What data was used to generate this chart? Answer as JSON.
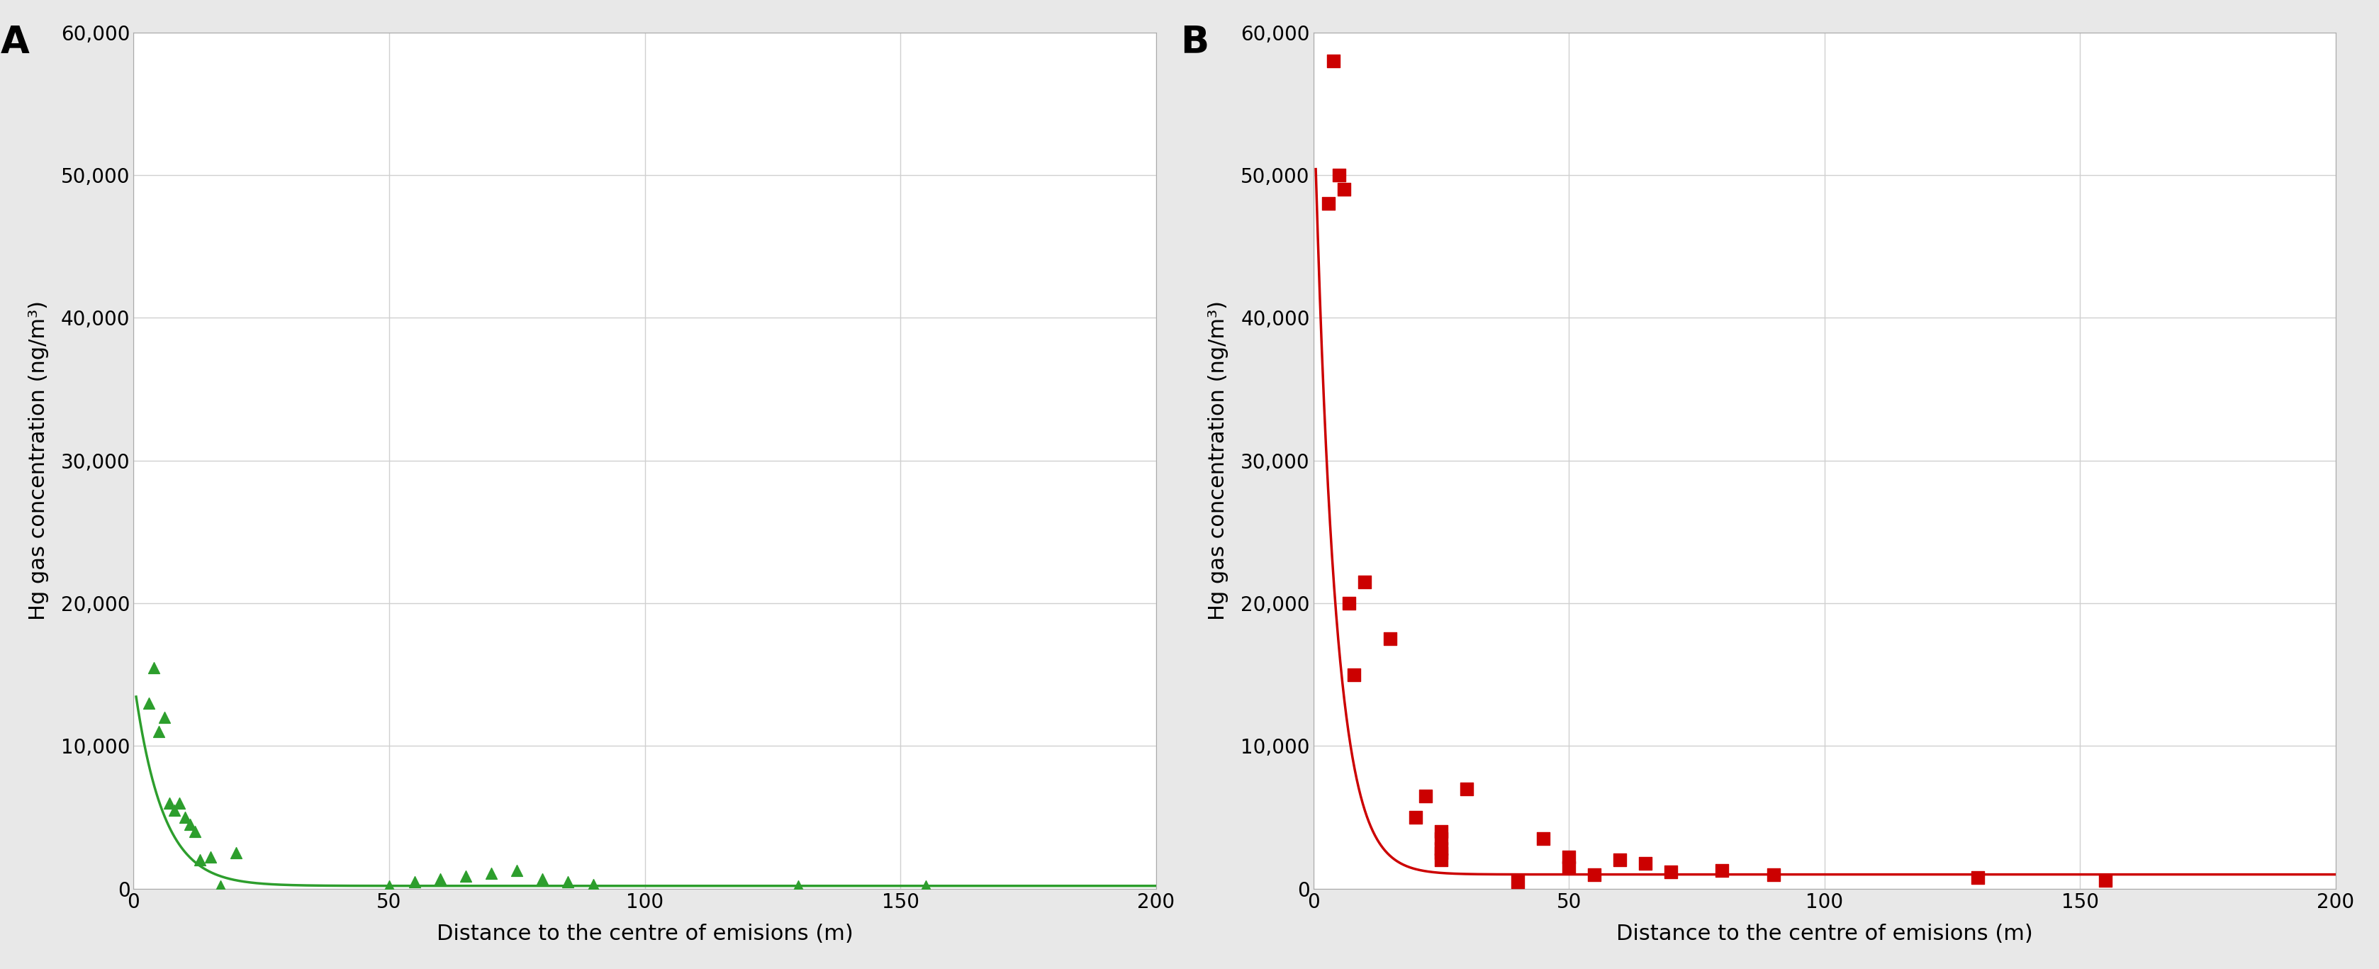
{
  "panel_A": {
    "label": "A",
    "color": "#2d9e2d",
    "scatter_x": [
      3,
      4,
      5,
      6,
      7,
      8,
      9,
      10,
      11,
      12,
      13,
      15,
      17,
      20,
      50,
      55,
      60,
      65,
      70,
      75,
      80,
      85,
      90,
      130,
      155
    ],
    "scatter_y": [
      13000,
      15500,
      11000,
      12000,
      6000,
      5500,
      6000,
      5000,
      4500,
      4000,
      2000,
      2200,
      200,
      2500,
      200,
      500,
      700,
      900,
      1100,
      1300,
      700,
      500,
      300,
      200,
      200
    ],
    "curve_A": 14500,
    "curve_b": 0.18,
    "curve_c": 200
  },
  "panel_B": {
    "label": "B",
    "color": "#cc0000",
    "scatter_x": [
      3,
      4,
      5,
      6,
      7,
      8,
      10,
      15,
      20,
      22,
      25,
      25,
      25,
      25,
      25,
      30,
      40,
      45,
      50,
      50,
      55,
      60,
      65,
      70,
      80,
      90,
      130,
      155
    ],
    "scatter_y": [
      48000,
      58000,
      50000,
      49000,
      20000,
      15000,
      21500,
      17500,
      5000,
      6500,
      4000,
      3500,
      2500,
      2000,
      2800,
      7000,
      500,
      3500,
      2200,
      1500,
      1000,
      2000,
      1800,
      1200,
      1300,
      1000,
      800,
      600
    ],
    "curve_A": 56000,
    "curve_b": 0.25,
    "curve_c": 1000
  },
  "xlabel": "Distance to the centre of emisions (m)",
  "ylabel": "Hg gas concentration (ng/m³)",
  "xlim": [
    0,
    200
  ],
  "ylim": [
    0,
    60000
  ],
  "yticks": [
    0,
    10000,
    20000,
    30000,
    40000,
    50000,
    60000
  ],
  "xticks": [
    0,
    50,
    100,
    150,
    200
  ],
  "background_color": "#ffffff",
  "outer_bg": "#e8e8e8",
  "grid_color": "#d0d0d0",
  "label_fontsize": 22,
  "tick_fontsize": 20,
  "panel_label_fontsize": 38
}
